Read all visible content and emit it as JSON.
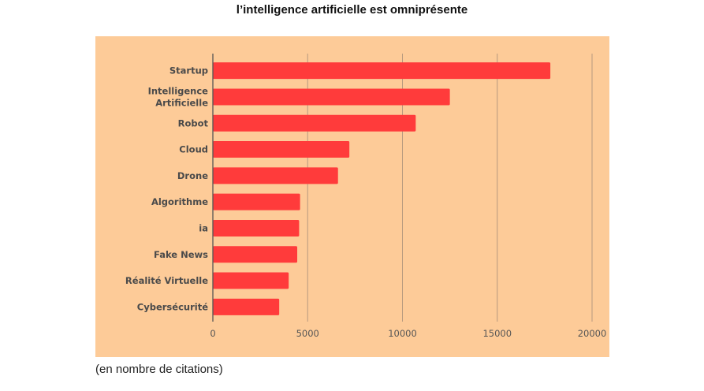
{
  "title": "l’intelligence artificielle est omniprésente",
  "footnote": "(en nombre de citations)",
  "colors": {
    "panel_background": "#fdcb98",
    "bar": "#ff3b3b",
    "grid": "#b79a7f",
    "axis": "#555555"
  },
  "chart_data": {
    "type": "bar",
    "orientation": "horizontal",
    "title": "l’intelligence artificielle est omniprésente",
    "xlabel": "",
    "ylabel": "",
    "categories": [
      [
        "Startup"
      ],
      [
        "Intelligence",
        "Artificielle"
      ],
      [
        "Robot"
      ],
      [
        "Cloud"
      ],
      [
        "Drone"
      ],
      [
        "Algorithme"
      ],
      [
        "ia"
      ],
      [
        "Fake News"
      ],
      [
        "Réalité Virtuelle"
      ],
      [
        "Cybersécurité"
      ]
    ],
    "values": [
      17800,
      12500,
      10700,
      7200,
      6600,
      4600,
      4550,
      4450,
      4000,
      3500
    ],
    "xlim": [
      0,
      20000
    ],
    "xticks": [
      0,
      5000,
      10000,
      15000,
      20000
    ],
    "grid": true,
    "legend": "none"
  }
}
